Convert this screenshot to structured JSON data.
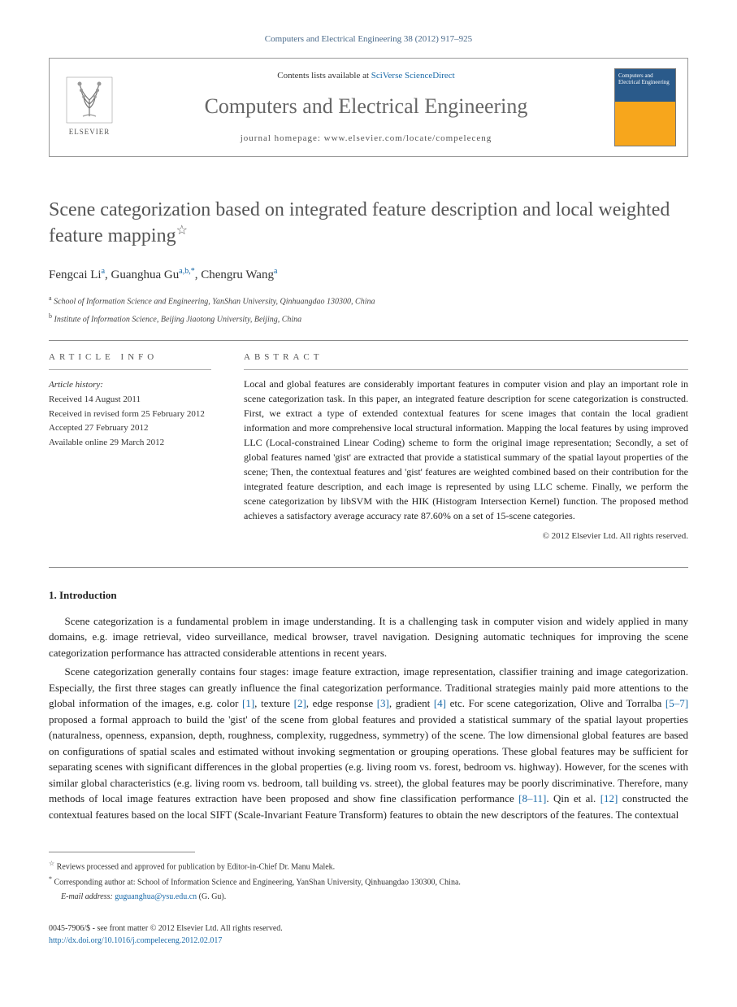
{
  "journal_ref": "Computers and Electrical Engineering 38 (2012) 917–925",
  "header": {
    "elsevier_label": "ELSEVIER",
    "contents_prefix": "Contents lists available at ",
    "contents_link": "SciVerse ScienceDirect",
    "journal_name": "Computers and Electrical Engineering",
    "homepage_prefix": "journal homepage: ",
    "homepage_url": "www.elsevier.com/locate/compeleceng",
    "cover_title": "Computers and Electrical Engineering"
  },
  "title": "Scene categorization based on integrated feature description and local weighted feature mapping",
  "title_star": "☆",
  "authors": [
    {
      "name": "Fengcai Li",
      "sup": "a"
    },
    {
      "name": "Guanghua Gu",
      "sup": "a,b,*"
    },
    {
      "name": "Chengru Wang",
      "sup": "a"
    }
  ],
  "affiliations": [
    {
      "sup": "a",
      "text": "School of Information Science and Engineering, YanShan University, Qinhuangdao 130300, China"
    },
    {
      "sup": "b",
      "text": "Institute of Information Science, Beijing Jiaotong University, Beijing, China"
    }
  ],
  "article_info": {
    "heading": "ARTICLE INFO",
    "history_label": "Article history:",
    "lines": [
      "Received 14 August 2011",
      "Received in revised form 25 February 2012",
      "Accepted 27 February 2012",
      "Available online 29 March 2012"
    ]
  },
  "abstract": {
    "heading": "ABSTRACT",
    "text": "Local and global features are considerably important features in computer vision and play an important role in scene categorization task. In this paper, an integrated feature description for scene categorization is constructed. First, we extract a type of extended contextual features for scene images that contain the local gradient information and more comprehensive local structural information. Mapping the local features by using improved LLC (Local-constrained Linear Coding) scheme to form the original image representation; Secondly, a set of global features named 'gist' are extracted that provide a statistical summary of the spatial layout properties of the scene; Then, the contextual features and 'gist' features are weighted combined based on their contribution for the integrated feature description, and each image is represented by using LLC scheme. Finally, we perform the scene categorization by libSVM with the HIK (Histogram Intersection Kernel) function. The proposed method achieves a satisfactory average accuracy rate 87.60% on a set of 15-scene categories.",
    "copyright": "© 2012 Elsevier Ltd. All rights reserved."
  },
  "intro": {
    "heading": "1. Introduction",
    "paras": [
      "Scene categorization is a fundamental problem in image understanding. It is a challenging task in computer vision and widely applied in many domains, e.g. image retrieval, video surveillance, medical browser, travel navigation. Designing automatic techniques for improving the scene categorization performance has attracted considerable attentions in recent years.",
      "Scene categorization generally contains four stages: image feature extraction, image representation, classifier training and image categorization. Especially, the first three stages can greatly influence the final categorization performance. Traditional strategies mainly paid more attentions to the global information of the images, e.g. color [1], texture [2], edge response [3], gradient [4] etc. For scene categorization, Olive and Torralba [5–7] proposed a formal approach to build the 'gist' of the scene from global features and provided a statistical summary of the spatial layout properties (naturalness, openness, expansion, depth, roughness, complexity, ruggedness, symmetry) of the scene. The low dimensional global features are based on configurations of spatial scales and estimated without invoking segmentation or grouping operations. These global features may be sufficient for separating scenes with significant differences in the global properties (e.g. living room vs. forest, bedroom vs. highway). However, for the scenes with similar global characteristics (e.g. living room vs. bedroom, tall building vs. street), the global features may be poorly discriminative. Therefore, many methods of local image features extraction have been proposed and show fine classification performance [8–11]. Qin et al. [12] constructed the contextual features based on the local SIFT (Scale-Invariant Feature Transform) features to obtain the new descriptors of the features. The contextual"
    ]
  },
  "footnotes": [
    {
      "sup": "☆",
      "text": "Reviews processed and approved for publication by Editor-in-Chief Dr. Manu Malek."
    },
    {
      "sup": "*",
      "text": "Corresponding author at: School of Information Science and Engineering, YanShan University, Qinhuangdao 130300, China.",
      "email_label": "E-mail address:",
      "email": "guguanghua@ysu.edu.cn",
      "email_suffix": "(G. Gu)."
    }
  ],
  "footer": {
    "line1": "0045-7906/$ - see front matter © 2012 Elsevier Ltd. All rights reserved.",
    "doi": "http://dx.doi.org/10.1016/j.compeleceng.2012.02.017"
  },
  "colors": {
    "link": "#1a6aa8",
    "heading_gray": "#555555",
    "cover_orange": "#f7a61c",
    "cover_blue": "#2a5a8a"
  }
}
